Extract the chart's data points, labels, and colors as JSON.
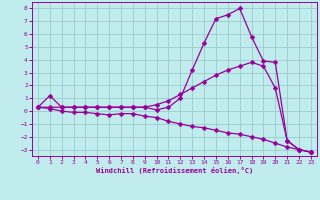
{
  "xlabel": "Windchill (Refroidissement éolien,°C)",
  "bg_color": "#c0ecee",
  "line_color": "#990099",
  "grid_color": "#99cccc",
  "xlim": [
    -0.5,
    23.5
  ],
  "ylim": [
    -3.5,
    8.5
  ],
  "xticks": [
    0,
    1,
    2,
    3,
    4,
    5,
    6,
    7,
    8,
    9,
    10,
    11,
    12,
    13,
    14,
    15,
    16,
    17,
    18,
    19,
    20,
    21,
    22,
    23
  ],
  "yticks": [
    -3,
    -2,
    -1,
    0,
    1,
    2,
    3,
    4,
    5,
    6,
    7,
    8
  ],
  "series1_x": [
    0,
    1,
    2,
    3,
    4,
    5,
    6,
    7,
    8,
    9,
    10,
    11,
    12,
    13,
    14,
    15,
    16,
    17,
    18,
    19,
    20,
    21,
    22,
    23
  ],
  "series1_y": [
    0.3,
    1.2,
    0.3,
    0.3,
    0.3,
    0.3,
    0.3,
    0.3,
    0.3,
    0.3,
    0.1,
    0.3,
    1.0,
    3.2,
    5.3,
    7.2,
    7.5,
    8.0,
    5.8,
    3.9,
    3.8,
    -2.3,
    -3.0,
    -3.2
  ],
  "series2_x": [
    0,
    1,
    2,
    3,
    4,
    5,
    6,
    7,
    8,
    9,
    10,
    11,
    12,
    13,
    14,
    15,
    16,
    17,
    18,
    19,
    20,
    21,
    22,
    23
  ],
  "series2_y": [
    0.3,
    0.3,
    0.3,
    0.3,
    0.3,
    0.3,
    0.3,
    0.3,
    0.3,
    0.3,
    0.5,
    0.8,
    1.3,
    1.8,
    2.3,
    2.8,
    3.2,
    3.5,
    3.8,
    3.5,
    1.8,
    -2.3,
    -3.0,
    -3.2
  ],
  "series3_x": [
    0,
    1,
    2,
    3,
    4,
    5,
    6,
    7,
    8,
    9,
    10,
    11,
    12,
    13,
    14,
    15,
    16,
    17,
    18,
    19,
    20,
    21,
    22,
    23
  ],
  "series3_y": [
    0.3,
    0.2,
    0.0,
    -0.1,
    -0.1,
    -0.2,
    -0.3,
    -0.2,
    -0.2,
    -0.4,
    -0.5,
    -0.8,
    -1.0,
    -1.2,
    -1.3,
    -1.5,
    -1.7,
    -1.8,
    -2.0,
    -2.2,
    -2.5,
    -2.8,
    -3.0,
    -3.2
  ]
}
